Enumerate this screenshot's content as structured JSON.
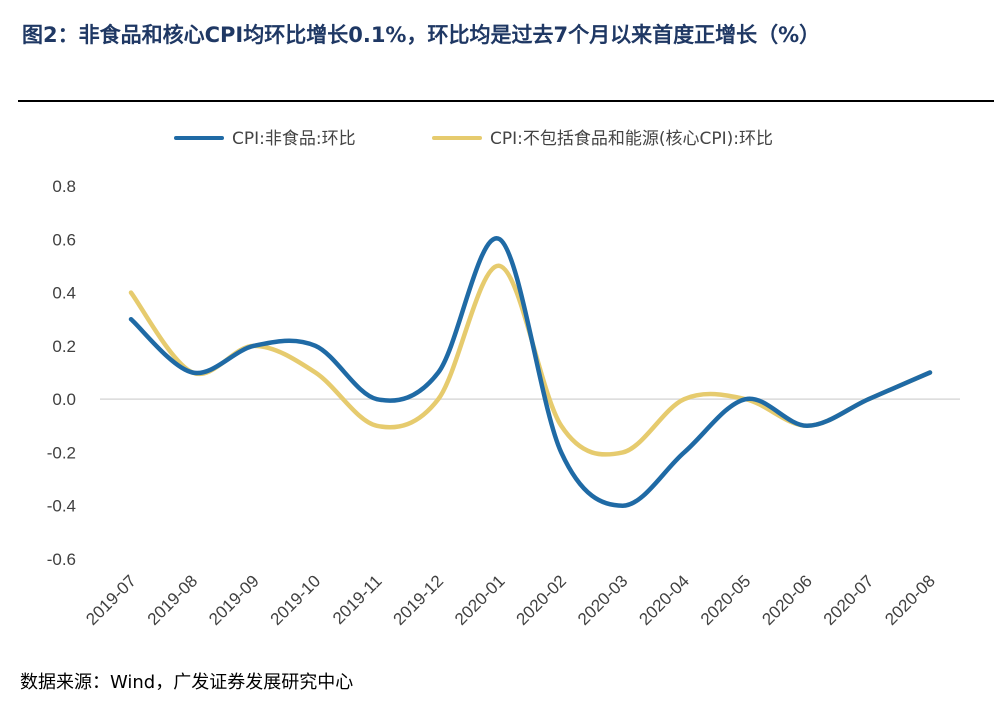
{
  "title": "图2：非食品和核心CPI均环比增长0.1%，环比均是过去7个月以来首度正增长（%）",
  "source": "数据来源：Wind，广发证券发展研究中心",
  "colors": {
    "series1": "#1f6aa5",
    "series2": "#e6cb6e",
    "zero_line": "#d9d9d9",
    "title": "#1f3864"
  },
  "chart_data": {
    "type": "line",
    "categories": [
      "2019-07",
      "2019-08",
      "2019-09",
      "2019-10",
      "2019-11",
      "2019-12",
      "2020-01",
      "2020-02",
      "2020-03",
      "2020-04",
      "2020-05",
      "2020-06",
      "2020-07",
      "2020-08"
    ],
    "series": [
      {
        "name": "CPI:非食品:环比",
        "values": [
          0.3,
          0.1,
          0.2,
          0.2,
          0.0,
          0.1,
          0.6,
          -0.2,
          -0.4,
          -0.2,
          0.0,
          -0.1,
          0.0,
          0.1
        ]
      },
      {
        "name": "CPI:不包括食品和能源(核心CPI):环比",
        "values": [
          0.4,
          0.1,
          0.2,
          0.1,
          -0.1,
          0.0,
          0.5,
          -0.1,
          -0.2,
          0.0,
          0.0,
          -0.1,
          0.0,
          0.1
        ]
      }
    ],
    "yticks": [
      "0.8",
      "0.6",
      "0.4",
      "0.2",
      "0.0",
      "-0.2",
      "-0.4",
      "-0.6"
    ],
    "ylim": [
      -0.6,
      0.8
    ],
    "legend_position": "top",
    "grid": false
  }
}
